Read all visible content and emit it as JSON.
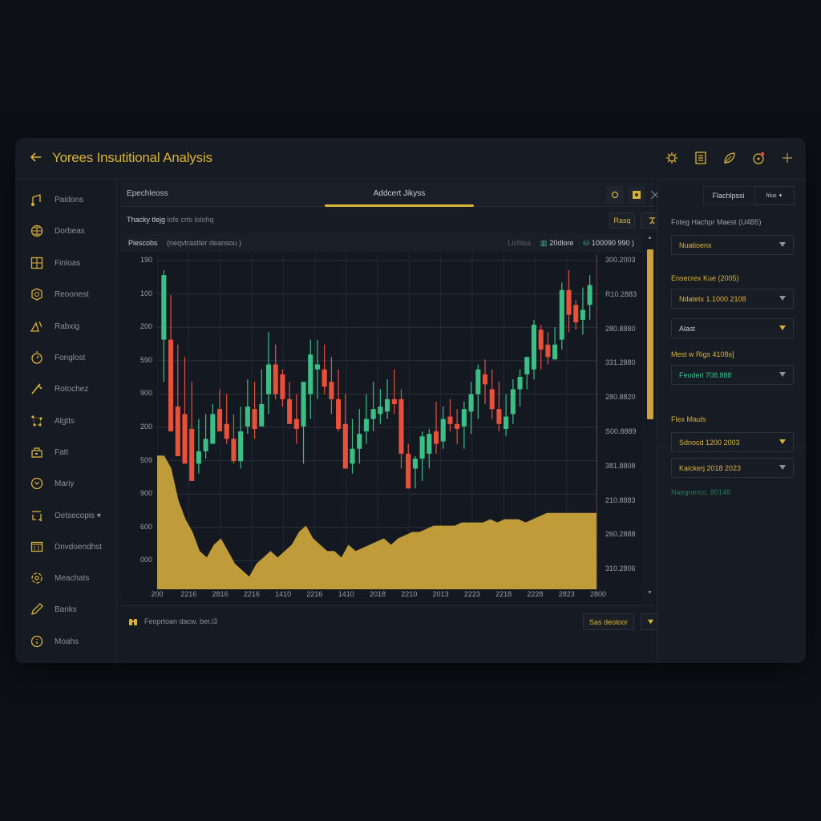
{
  "app": {
    "title": "Yorees Insutitional Analysis",
    "back_icon": "arrow-left-icon",
    "toolbar_icons": [
      {
        "name": "settings-gear-icon",
        "color": "#d9b23a"
      },
      {
        "name": "calculator-icon",
        "color": "#d9b23a"
      },
      {
        "name": "leaf-icon",
        "color": "#d9b23a"
      },
      {
        "name": "notification-clock-icon",
        "color": "#d9b23a",
        "badge_color": "#e0463a"
      },
      {
        "name": "plus-icon",
        "color": "#d9b23a"
      }
    ]
  },
  "sidebar": {
    "items": [
      {
        "label": "Paidons",
        "icon": "music-note-icon"
      },
      {
        "label": "Dorbeas",
        "icon": "globe-icon"
      },
      {
        "label": "Finloas",
        "icon": "grid-icon"
      },
      {
        "label": "Reoonest",
        "icon": "coin-icon"
      },
      {
        "label": "Rabxig",
        "icon": "triangle-ruler-icon"
      },
      {
        "label": "Fonglost",
        "icon": "timer-icon"
      },
      {
        "label": "Rotochez",
        "icon": "tool-icon"
      },
      {
        "label": "Algtts",
        "icon": "network-icon"
      },
      {
        "label": "Fatt",
        "icon": "wallet-icon"
      },
      {
        "label": "Mariy",
        "icon": "clock-icon"
      },
      {
        "label": "Oetsecopis ▾",
        "icon": "refresh-frame-icon"
      },
      {
        "label": "Dnvdoendhst",
        "icon": "calendar-icon"
      },
      {
        "label": "Meachats",
        "icon": "target-icon"
      },
      {
        "label": "Banks",
        "icon": "pen-icon"
      },
      {
        "label": "Moahs",
        "icon": "circle-info-icon"
      }
    ]
  },
  "main": {
    "tab_left": "Epechleoss",
    "tab_center": "Addcert Jikyss",
    "tab_buttons": [
      "refresh-icon",
      "image-icon",
      "close-icon"
    ],
    "subbar": {
      "text_bold": "Thacky tlejg",
      "text_muted": "lofe crts lolohq",
      "read_button": "Rasq",
      "pin_button_icon": "pin-icon"
    },
    "chart_header": {
      "left": "Piescobs",
      "desc": "(neqvtrastter deansou )",
      "muted": "Lichtsa",
      "item1": "20dlore",
      "item2": "100090 990"
    },
    "bottombar": {
      "icon": "binoculars-icon",
      "text": "Feoprtoan dacw. ber.i3",
      "button": "Sas deoloor",
      "dropdown_icon": "chevron-down-icon"
    }
  },
  "right_panel": {
    "tab": "Flachlpssi",
    "tab_button": "hlus ✦",
    "sections": [
      {
        "label": "Foteg Hachpr Maest (U4B5)",
        "label_color": "#9aa0aa",
        "select": "Nuatioenx",
        "select_color": "#d9b23a"
      },
      {
        "label": "Ensecrex Kue (2005)",
        "label_color": "#d9b23a",
        "select": "Ndatetx 1.1000 2108",
        "select_color": "#d9b23a"
      },
      {
        "label": "",
        "select": "Alast",
        "select_color": "#c8cbd2"
      },
      {
        "label": "Mest w Rigs 4108s]",
        "label_color": "#d9b23a",
        "select": "Feoderl 708.888",
        "select_color": "#3cbf85"
      }
    ],
    "section2_title": "Flex Mauls",
    "section2_selects": [
      "Sdnocd 1200 2003",
      "Kaickerj 2018 2023"
    ],
    "footer_text": "Naegnerco. 80148",
    "footer_color": "#1f7a52"
  },
  "colors": {
    "accent_gold": "#d9b23a",
    "up_green": "#3cbf85",
    "down_red": "#e8503a",
    "area_fill": "#c9a23c",
    "background": "#161a22"
  },
  "chart_data": {
    "type": "candlestick",
    "title": "Addcert Jikyss",
    "y_left_ticks": [
      "190",
      "100",
      "200",
      "590",
      "900",
      "200",
      "509",
      "900",
      "600",
      "000"
    ],
    "y_right_ticks": [
      "300.2003",
      "R10.2883",
      "280.8880",
      "331.2880",
      "280.8820",
      "S00.8889",
      "381.8808",
      "210.8883",
      "260.2888",
      "310.2806"
    ],
    "x_ticks": [
      "200",
      "2216",
      "2816",
      "2216",
      "1410",
      "2216",
      "1410",
      "2018",
      "2210",
      "2013",
      "2223",
      "2218",
      "2228",
      "2823",
      "2800"
    ],
    "candles": [
      [
        1.0,
        0.55,
        0.98,
        0.72,
        1
      ],
      [
        0.9,
        0.6,
        0.72,
        0.35,
        0
      ],
      [
        0.7,
        0.35,
        0.45,
        0.25,
        0
      ],
      [
        0.65,
        0.28,
        0.42,
        0.22,
        0
      ],
      [
        0.55,
        0.2,
        0.36,
        0.15,
        0
      ],
      [
        0.4,
        0.18,
        0.22,
        0.27,
        1
      ],
      [
        0.42,
        0.24,
        0.27,
        0.32,
        1
      ],
      [
        0.46,
        0.3,
        0.3,
        0.42,
        1
      ],
      [
        0.52,
        0.36,
        0.44,
        0.35,
        0
      ],
      [
        0.5,
        0.3,
        0.38,
        0.32,
        0
      ],
      [
        0.42,
        0.22,
        0.32,
        0.23,
        0
      ],
      [
        0.45,
        0.2,
        0.23,
        0.35,
        1
      ],
      [
        0.56,
        0.34,
        0.37,
        0.45,
        1
      ],
      [
        0.55,
        0.32,
        0.44,
        0.36,
        0
      ],
      [
        0.6,
        0.38,
        0.37,
        0.46,
        1
      ],
      [
        0.75,
        0.42,
        0.5,
        0.62,
        1
      ],
      [
        0.7,
        0.48,
        0.62,
        0.5,
        0
      ],
      [
        0.6,
        0.45,
        0.58,
        0.48,
        0
      ],
      [
        0.55,
        0.38,
        0.48,
        0.38,
        0
      ],
      [
        0.5,
        0.3,
        0.4,
        0.36,
        0
      ],
      [
        0.52,
        0.22,
        0.37,
        0.55,
        1
      ],
      [
        0.72,
        0.4,
        0.5,
        0.66,
        1
      ],
      [
        0.72,
        0.48,
        0.62,
        0.6,
        1
      ],
      [
        0.7,
        0.5,
        0.6,
        0.53,
        0
      ],
      [
        0.65,
        0.42,
        0.55,
        0.48,
        0
      ],
      [
        0.6,
        0.35,
        0.48,
        0.36,
        0
      ],
      [
        0.5,
        0.22,
        0.38,
        0.2,
        0
      ],
      [
        0.4,
        0.18,
        0.22,
        0.28,
        1
      ],
      [
        0.44,
        0.22,
        0.28,
        0.34,
        1
      ],
      [
        0.5,
        0.3,
        0.35,
        0.4,
        1
      ],
      [
        0.55,
        0.35,
        0.4,
        0.44,
        1
      ],
      [
        0.52,
        0.38,
        0.42,
        0.45,
        1
      ],
      [
        0.56,
        0.4,
        0.43,
        0.48,
        1
      ],
      [
        0.6,
        0.42,
        0.48,
        0.46,
        0
      ],
      [
        0.52,
        0.2,
        0.48,
        0.26,
        0
      ],
      [
        0.3,
        0.12,
        0.26,
        0.12,
        0
      ],
      [
        0.25,
        0.12,
        0.2,
        0.24,
        1
      ],
      [
        0.35,
        0.15,
        0.24,
        0.33,
        1
      ],
      [
        0.36,
        0.2,
        0.26,
        0.34,
        1
      ],
      [
        0.47,
        0.26,
        0.35,
        0.3,
        0
      ],
      [
        0.45,
        0.28,
        0.31,
        0.4,
        1
      ],
      [
        0.48,
        0.35,
        0.41,
        0.38,
        0
      ],
      [
        0.44,
        0.3,
        0.38,
        0.36,
        0
      ],
      [
        0.47,
        0.28,
        0.37,
        0.44,
        1
      ],
      [
        0.55,
        0.34,
        0.43,
        0.5,
        1
      ],
      [
        0.62,
        0.4,
        0.5,
        0.6,
        1
      ],
      [
        0.64,
        0.46,
        0.58,
        0.54,
        0
      ],
      [
        0.6,
        0.4,
        0.52,
        0.44,
        0
      ],
      [
        0.55,
        0.35,
        0.44,
        0.38,
        0
      ],
      [
        0.5,
        0.33,
        0.36,
        0.41,
        1
      ],
      [
        0.56,
        0.38,
        0.42,
        0.52,
        1
      ],
      [
        0.6,
        0.45,
        0.52,
        0.57,
        1
      ],
      [
        0.65,
        0.52,
        0.58,
        0.65,
        1
      ],
      [
        0.8,
        0.56,
        0.6,
        0.78,
        1
      ],
      [
        0.78,
        0.6,
        0.76,
        0.68,
        0
      ],
      [
        0.75,
        0.62,
        0.7,
        0.65,
        0
      ],
      [
        0.77,
        0.64,
        0.64,
        0.7,
        1
      ],
      [
        0.95,
        0.68,
        0.72,
        0.92,
        1
      ],
      [
        1.0,
        0.75,
        0.92,
        0.82,
        0
      ],
      [
        0.88,
        0.76,
        0.86,
        0.79,
        0
      ],
      [
        0.93,
        0.74,
        0.8,
        0.84,
        1
      ],
      [
        0.98,
        0.8,
        0.86,
        0.94,
        1
      ]
    ],
    "area": [
      0.42,
      0.42,
      0.38,
      0.28,
      0.22,
      0.18,
      0.12,
      0.1,
      0.14,
      0.16,
      0.12,
      0.08,
      0.06,
      0.04,
      0.08,
      0.1,
      0.12,
      0.1,
      0.12,
      0.14,
      0.18,
      0.2,
      0.16,
      0.14,
      0.12,
      0.12,
      0.1,
      0.14,
      0.12,
      0.13,
      0.14,
      0.15,
      0.16,
      0.14,
      0.16,
      0.17,
      0.18,
      0.18,
      0.19,
      0.2,
      0.2,
      0.2,
      0.2,
      0.21,
      0.21,
      0.21,
      0.21,
      0.22,
      0.21,
      0.22,
      0.22,
      0.22,
      0.21,
      0.22,
      0.23,
      0.24,
      0.24,
      0.24,
      0.24,
      0.24,
      0.24,
      0.24,
      0.24
    ],
    "xlabel": "",
    "ylabel": "",
    "grid": true
  }
}
